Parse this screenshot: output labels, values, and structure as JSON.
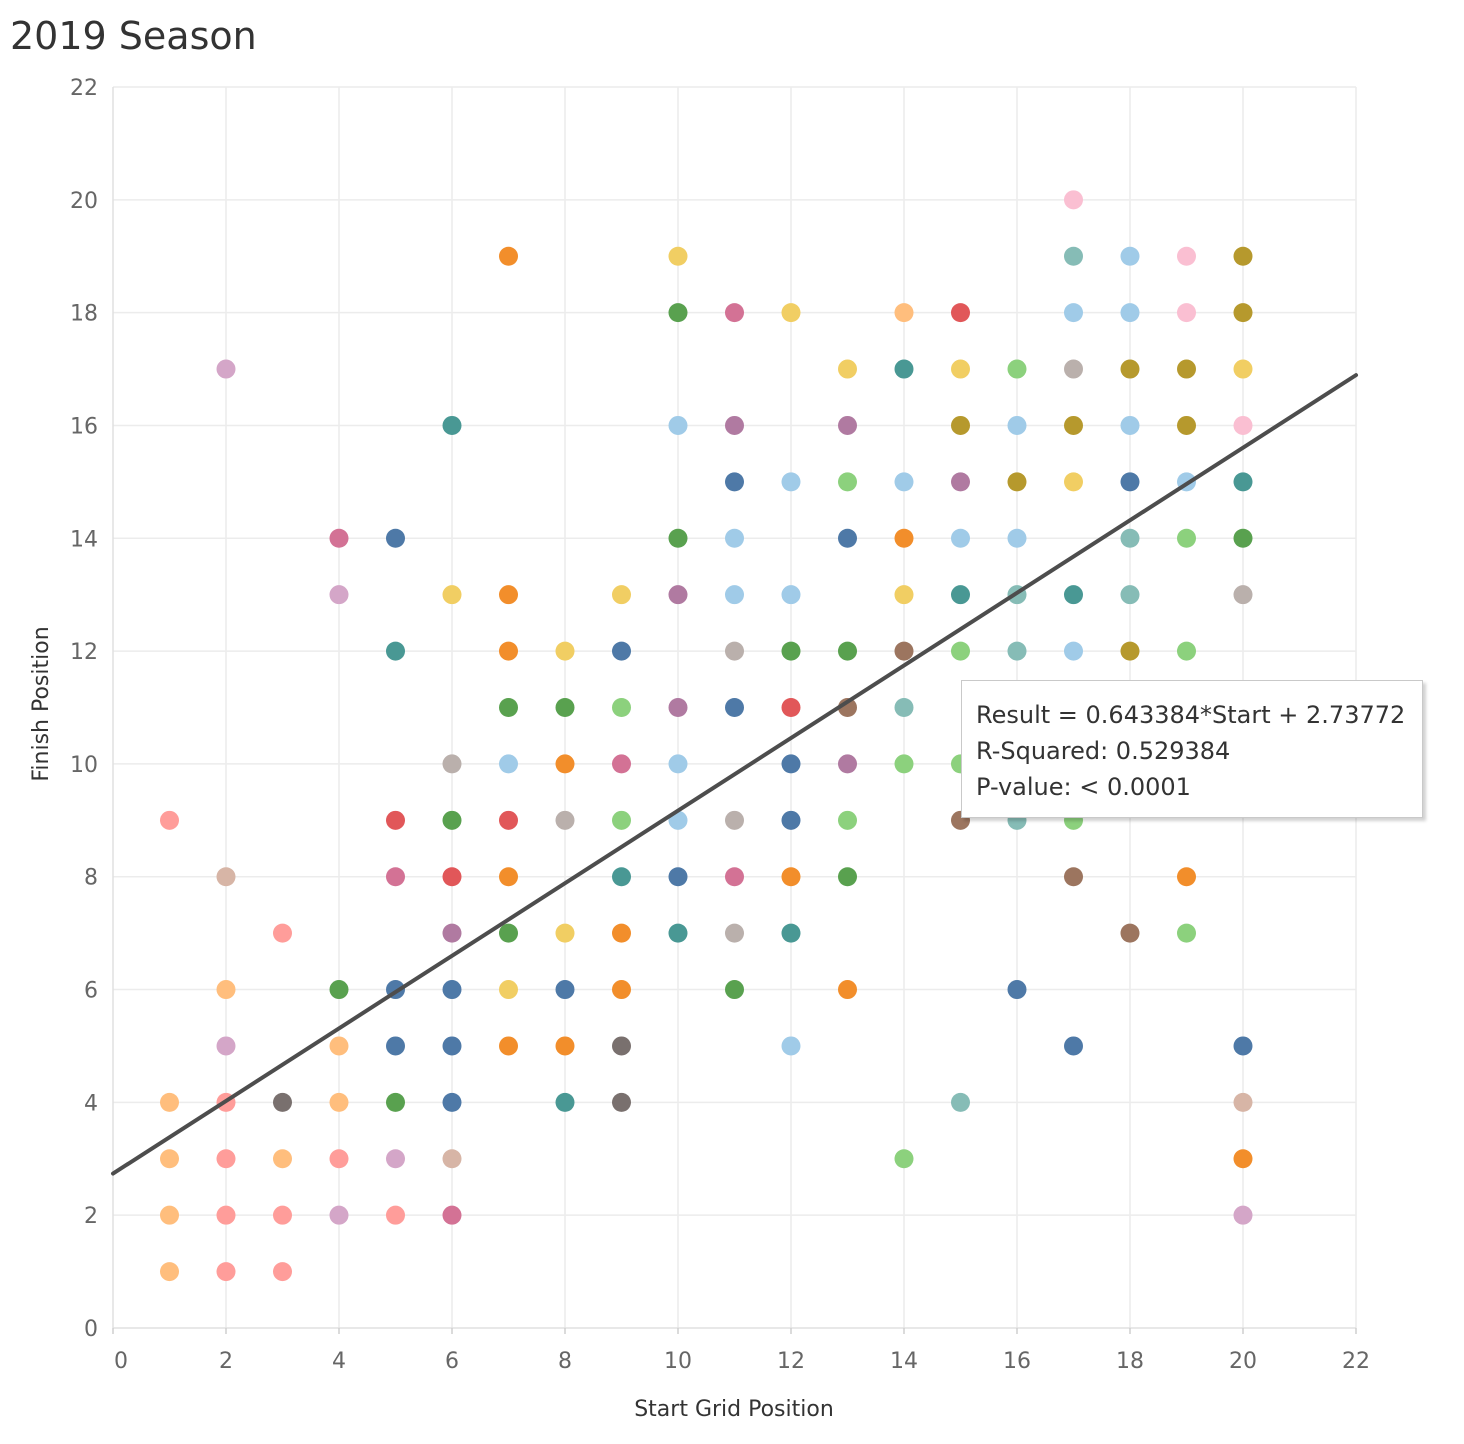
{
  "chart_data": {
    "type": "scatter",
    "title": "2019 Season",
    "xlabel": "Start Grid Position",
    "ylabel": "Finish Position",
    "xlim": [
      0,
      22
    ],
    "ylim": [
      0,
      22
    ],
    "xticks": [
      0,
      2,
      4,
      6,
      8,
      10,
      12,
      14,
      16,
      18,
      20,
      22
    ],
    "yticks": [
      0,
      2,
      4,
      6,
      8,
      10,
      12,
      14,
      16,
      18,
      20,
      22
    ],
    "grid": true,
    "trend_line": {
      "slope": 0.643384,
      "intercept": 2.73772,
      "color": "#4d4d4d"
    },
    "annotation": {
      "equation": "Result = 0.643384*Start + 2.73772",
      "r_squared": "R-Squared: 0.529384",
      "p_value": "P-value: < 0.0001"
    },
    "points": [
      {
        "x": 1,
        "y": 9,
        "color": "#ff9d9a"
      },
      {
        "x": 1,
        "y": 4,
        "color": "#ffbe7d"
      },
      {
        "x": 1,
        "y": 3,
        "color": "#ffbe7d"
      },
      {
        "x": 1,
        "y": 2,
        "color": "#ffbe7d"
      },
      {
        "x": 1,
        "y": 1,
        "color": "#ffbe7d"
      },
      {
        "x": 2,
        "y": 17,
        "color": "#d4a6c8"
      },
      {
        "x": 2,
        "y": 8,
        "color": "#d7b5a6"
      },
      {
        "x": 2,
        "y": 6,
        "color": "#ffbe7d"
      },
      {
        "x": 2,
        "y": 5,
        "color": "#d4a6c8"
      },
      {
        "x": 2,
        "y": 4,
        "color": "#ff9d9a"
      },
      {
        "x": 2,
        "y": 3,
        "color": "#ff9d9a"
      },
      {
        "x": 2,
        "y": 2,
        "color": "#ff9d9a"
      },
      {
        "x": 2,
        "y": 1,
        "color": "#ff9d9a"
      },
      {
        "x": 3,
        "y": 7,
        "color": "#ff9d9a"
      },
      {
        "x": 3,
        "y": 4,
        "color": "#79706e"
      },
      {
        "x": 3,
        "y": 3,
        "color": "#ffbe7d"
      },
      {
        "x": 3,
        "y": 2,
        "color": "#ff9d9a"
      },
      {
        "x": 3,
        "y": 1,
        "color": "#ff9d9a"
      },
      {
        "x": 4,
        "y": 14,
        "color": "#d37295"
      },
      {
        "x": 4,
        "y": 13,
        "color": "#d4a6c8"
      },
      {
        "x": 4,
        "y": 6,
        "color": "#59a14f"
      },
      {
        "x": 4,
        "y": 5,
        "color": "#ffbe7d"
      },
      {
        "x": 4,
        "y": 4,
        "color": "#ffbe7d"
      },
      {
        "x": 4,
        "y": 3,
        "color": "#ff9d9a"
      },
      {
        "x": 4,
        "y": 2,
        "color": "#d4a6c8"
      },
      {
        "x": 5,
        "y": 14,
        "color": "#4e79a7"
      },
      {
        "x": 5,
        "y": 12,
        "color": "#499894"
      },
      {
        "x": 5,
        "y": 9,
        "color": "#e15759"
      },
      {
        "x": 5,
        "y": 8,
        "color": "#d37295"
      },
      {
        "x": 5,
        "y": 6,
        "color": "#4e79a7"
      },
      {
        "x": 5,
        "y": 5,
        "color": "#4e79a7"
      },
      {
        "x": 5,
        "y": 4,
        "color": "#59a14f"
      },
      {
        "x": 5,
        "y": 3,
        "color": "#d4a6c8"
      },
      {
        "x": 5,
        "y": 2,
        "color": "#ff9d9a"
      },
      {
        "x": 6,
        "y": 16,
        "color": "#499894"
      },
      {
        "x": 6,
        "y": 13,
        "color": "#f1ce63"
      },
      {
        "x": 6,
        "y": 10,
        "color": "#bab0ac"
      },
      {
        "x": 6,
        "y": 9,
        "color": "#59a14f"
      },
      {
        "x": 6,
        "y": 8,
        "color": "#e15759"
      },
      {
        "x": 6,
        "y": 7,
        "color": "#b07aa1"
      },
      {
        "x": 6,
        "y": 6,
        "color": "#4e79a7"
      },
      {
        "x": 6,
        "y": 5,
        "color": "#4e79a7"
      },
      {
        "x": 6,
        "y": 4,
        "color": "#4e79a7"
      },
      {
        "x": 6,
        "y": 3,
        "color": "#d7b5a6"
      },
      {
        "x": 6,
        "y": 2,
        "color": "#d37295"
      },
      {
        "x": 7,
        "y": 19,
        "color": "#f28e2b"
      },
      {
        "x": 7,
        "y": 13,
        "color": "#f28e2b"
      },
      {
        "x": 7,
        "y": 12,
        "color": "#f28e2b"
      },
      {
        "x": 7,
        "y": 11,
        "color": "#59a14f"
      },
      {
        "x": 7,
        "y": 10,
        "color": "#a0cbe8"
      },
      {
        "x": 7,
        "y": 9,
        "color": "#e15759"
      },
      {
        "x": 7,
        "y": 8,
        "color": "#f28e2b"
      },
      {
        "x": 7,
        "y": 7,
        "color": "#59a14f"
      },
      {
        "x": 7,
        "y": 6,
        "color": "#f1ce63"
      },
      {
        "x": 7,
        "y": 5,
        "color": "#f28e2b"
      },
      {
        "x": 8,
        "y": 12,
        "color": "#f1ce63"
      },
      {
        "x": 8,
        "y": 11,
        "color": "#59a14f"
      },
      {
        "x": 8,
        "y": 10,
        "color": "#f28e2b"
      },
      {
        "x": 8,
        "y": 9,
        "color": "#bab0ac"
      },
      {
        "x": 8,
        "y": 7,
        "color": "#f1ce63"
      },
      {
        "x": 8,
        "y": 6,
        "color": "#4e79a7"
      },
      {
        "x": 8,
        "y": 5,
        "color": "#f28e2b"
      },
      {
        "x": 8,
        "y": 4,
        "color": "#499894"
      },
      {
        "x": 9,
        "y": 13,
        "color": "#f1ce63"
      },
      {
        "x": 9,
        "y": 12,
        "color": "#4e79a7"
      },
      {
        "x": 9,
        "y": 11,
        "color": "#8cd17d"
      },
      {
        "x": 9,
        "y": 10,
        "color": "#d37295"
      },
      {
        "x": 9,
        "y": 9,
        "color": "#8cd17d"
      },
      {
        "x": 9,
        "y": 8,
        "color": "#499894"
      },
      {
        "x": 9,
        "y": 7,
        "color": "#f28e2b"
      },
      {
        "x": 9,
        "y": 6,
        "color": "#f28e2b"
      },
      {
        "x": 9,
        "y": 5,
        "color": "#79706e"
      },
      {
        "x": 9,
        "y": 4,
        "color": "#79706e"
      },
      {
        "x": 10,
        "y": 19,
        "color": "#f1ce63"
      },
      {
        "x": 10,
        "y": 18,
        "color": "#59a14f"
      },
      {
        "x": 10,
        "y": 16,
        "color": "#a0cbe8"
      },
      {
        "x": 10,
        "y": 14,
        "color": "#59a14f"
      },
      {
        "x": 10,
        "y": 13,
        "color": "#b07aa1"
      },
      {
        "x": 10,
        "y": 11,
        "color": "#b07aa1"
      },
      {
        "x": 10,
        "y": 10,
        "color": "#a0cbe8"
      },
      {
        "x": 10,
        "y": 9,
        "color": "#a0cbe8"
      },
      {
        "x": 10,
        "y": 8,
        "color": "#4e79a7"
      },
      {
        "x": 10,
        "y": 7,
        "color": "#499894"
      },
      {
        "x": 11,
        "y": 18,
        "color": "#d37295"
      },
      {
        "x": 11,
        "y": 16,
        "color": "#b07aa1"
      },
      {
        "x": 11,
        "y": 15,
        "color": "#4e79a7"
      },
      {
        "x": 11,
        "y": 14,
        "color": "#a0cbe8"
      },
      {
        "x": 11,
        "y": 13,
        "color": "#a0cbe8"
      },
      {
        "x": 11,
        "y": 12,
        "color": "#bab0ac"
      },
      {
        "x": 11,
        "y": 11,
        "color": "#4e79a7"
      },
      {
        "x": 11,
        "y": 9,
        "color": "#bab0ac"
      },
      {
        "x": 11,
        "y": 8,
        "color": "#d37295"
      },
      {
        "x": 11,
        "y": 7,
        "color": "#bab0ac"
      },
      {
        "x": 11,
        "y": 6,
        "color": "#59a14f"
      },
      {
        "x": 12,
        "y": 18,
        "color": "#f1ce63"
      },
      {
        "x": 12,
        "y": 15,
        "color": "#a0cbe8"
      },
      {
        "x": 12,
        "y": 13,
        "color": "#a0cbe8"
      },
      {
        "x": 12,
        "y": 12,
        "color": "#59a14f"
      },
      {
        "x": 12,
        "y": 11,
        "color": "#e15759"
      },
      {
        "x": 12,
        "y": 10,
        "color": "#4e79a7"
      },
      {
        "x": 12,
        "y": 9,
        "color": "#4e79a7"
      },
      {
        "x": 12,
        "y": 8,
        "color": "#f28e2b"
      },
      {
        "x": 12,
        "y": 7,
        "color": "#499894"
      },
      {
        "x": 12,
        "y": 5,
        "color": "#a0cbe8"
      },
      {
        "x": 13,
        "y": 17,
        "color": "#f1ce63"
      },
      {
        "x": 13,
        "y": 16,
        "color": "#b07aa1"
      },
      {
        "x": 13,
        "y": 15,
        "color": "#8cd17d"
      },
      {
        "x": 13,
        "y": 14,
        "color": "#4e79a7"
      },
      {
        "x": 13,
        "y": 12,
        "color": "#59a14f"
      },
      {
        "x": 13,
        "y": 11,
        "color": "#9c755f"
      },
      {
        "x": 13,
        "y": 10,
        "color": "#b07aa1"
      },
      {
        "x": 13,
        "y": 9,
        "color": "#8cd17d"
      },
      {
        "x": 13,
        "y": 8,
        "color": "#59a14f"
      },
      {
        "x": 13,
        "y": 6,
        "color": "#f28e2b"
      },
      {
        "x": 14,
        "y": 18,
        "color": "#ffbe7d"
      },
      {
        "x": 14,
        "y": 17,
        "color": "#499894"
      },
      {
        "x": 14,
        "y": 15,
        "color": "#a0cbe8"
      },
      {
        "x": 14,
        "y": 14,
        "color": "#f28e2b"
      },
      {
        "x": 14,
        "y": 13,
        "color": "#f1ce63"
      },
      {
        "x": 14,
        "y": 12,
        "color": "#9c755f"
      },
      {
        "x": 14,
        "y": 11,
        "color": "#86bcb6"
      },
      {
        "x": 14,
        "y": 10,
        "color": "#8cd17d"
      },
      {
        "x": 14,
        "y": 3,
        "color": "#8cd17d"
      },
      {
        "x": 15,
        "y": 18,
        "color": "#e15759"
      },
      {
        "x": 15,
        "y": 17,
        "color": "#f1ce63"
      },
      {
        "x": 15,
        "y": 16,
        "color": "#b6992d"
      },
      {
        "x": 15,
        "y": 15,
        "color": "#b07aa1"
      },
      {
        "x": 15,
        "y": 14,
        "color": "#a0cbe8"
      },
      {
        "x": 15,
        "y": 13,
        "color": "#499894"
      },
      {
        "x": 15,
        "y": 12,
        "color": "#8cd17d"
      },
      {
        "x": 15,
        "y": 10,
        "color": "#8cd17d"
      },
      {
        "x": 15,
        "y": 9,
        "color": "#9c755f"
      },
      {
        "x": 15,
        "y": 4,
        "color": "#86bcb6"
      },
      {
        "x": 16,
        "y": 17,
        "color": "#8cd17d"
      },
      {
        "x": 16,
        "y": 16,
        "color": "#a0cbe8"
      },
      {
        "x": 16,
        "y": 15,
        "color": "#b6992d"
      },
      {
        "x": 16,
        "y": 14,
        "color": "#a0cbe8"
      },
      {
        "x": 16,
        "y": 13,
        "color": "#86bcb6"
      },
      {
        "x": 16,
        "y": 12,
        "color": "#86bcb6"
      },
      {
        "x": 16,
        "y": 9,
        "color": "#86bcb6"
      },
      {
        "x": 16,
        "y": 6,
        "color": "#4e79a7"
      },
      {
        "x": 17,
        "y": 20,
        "color": "#fabfd2"
      },
      {
        "x": 17,
        "y": 19,
        "color": "#86bcb6"
      },
      {
        "x": 17,
        "y": 18,
        "color": "#a0cbe8"
      },
      {
        "x": 17,
        "y": 17,
        "color": "#bab0ac"
      },
      {
        "x": 17,
        "y": 16,
        "color": "#b6992d"
      },
      {
        "x": 17,
        "y": 15,
        "color": "#f1ce63"
      },
      {
        "x": 17,
        "y": 13,
        "color": "#499894"
      },
      {
        "x": 17,
        "y": 12,
        "color": "#a0cbe8"
      },
      {
        "x": 17,
        "y": 9,
        "color": "#8cd17d"
      },
      {
        "x": 17,
        "y": 8,
        "color": "#9c755f"
      },
      {
        "x": 17,
        "y": 5,
        "color": "#4e79a7"
      },
      {
        "x": 18,
        "y": 19,
        "color": "#a0cbe8"
      },
      {
        "x": 18,
        "y": 18,
        "color": "#a0cbe8"
      },
      {
        "x": 18,
        "y": 17,
        "color": "#b6992d"
      },
      {
        "x": 18,
        "y": 16,
        "color": "#a0cbe8"
      },
      {
        "x": 18,
        "y": 15,
        "color": "#4e79a7"
      },
      {
        "x": 18,
        "y": 14,
        "color": "#86bcb6"
      },
      {
        "x": 18,
        "y": 13,
        "color": "#86bcb6"
      },
      {
        "x": 18,
        "y": 12,
        "color": "#b6992d"
      },
      {
        "x": 18,
        "y": 7,
        "color": "#9c755f"
      },
      {
        "x": 19,
        "y": 19,
        "color": "#fabfd2"
      },
      {
        "x": 19,
        "y": 18,
        "color": "#fabfd2"
      },
      {
        "x": 19,
        "y": 17,
        "color": "#b6992d"
      },
      {
        "x": 19,
        "y": 16,
        "color": "#b6992d"
      },
      {
        "x": 19,
        "y": 15,
        "color": "#a0cbe8"
      },
      {
        "x": 19,
        "y": 14,
        "color": "#8cd17d"
      },
      {
        "x": 19,
        "y": 12,
        "color": "#8cd17d"
      },
      {
        "x": 19,
        "y": 8,
        "color": "#f28e2b"
      },
      {
        "x": 19,
        "y": 7,
        "color": "#8cd17d"
      },
      {
        "x": 20,
        "y": 19,
        "color": "#b6992d"
      },
      {
        "x": 20,
        "y": 18,
        "color": "#b6992d"
      },
      {
        "x": 20,
        "y": 17,
        "color": "#f1ce63"
      },
      {
        "x": 20,
        "y": 16,
        "color": "#fabfd2"
      },
      {
        "x": 20,
        "y": 15,
        "color": "#499894"
      },
      {
        "x": 20,
        "y": 14,
        "color": "#59a14f"
      },
      {
        "x": 20,
        "y": 13,
        "color": "#bab0ac"
      },
      {
        "x": 20,
        "y": 5,
        "color": "#4e79a7"
      },
      {
        "x": 20,
        "y": 4,
        "color": "#d7b5a6"
      },
      {
        "x": 20,
        "y": 3,
        "color": "#f28e2b"
      },
      {
        "x": 20,
        "y": 2,
        "color": "#d4a6c8"
      }
    ]
  }
}
